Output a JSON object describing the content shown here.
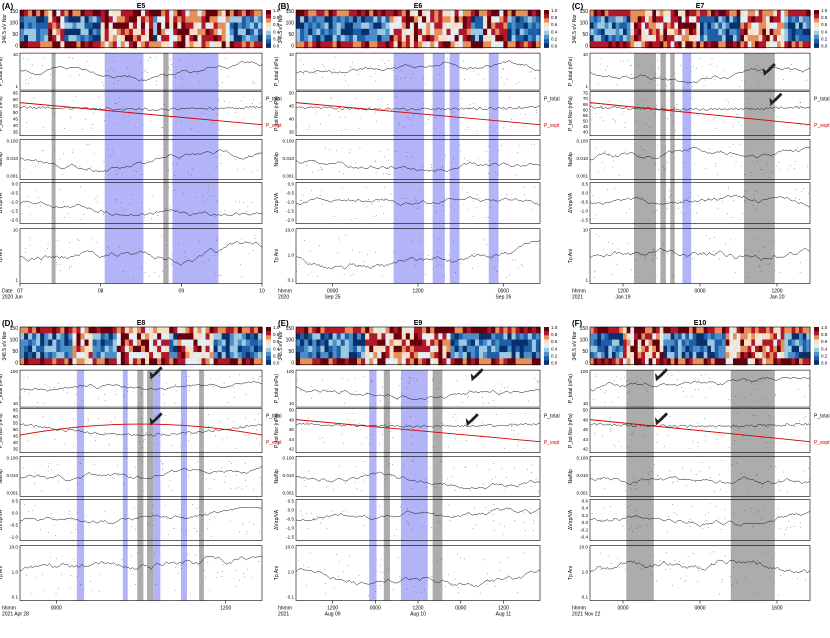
{
  "figure": {
    "row_labels": [
      "β",
      "P_total (nPa)",
      "P_tot Nor (nPa)",
      "Na/Np",
      "ΔVαp/VA",
      "Tp Ani"
    ],
    "spectrogram_label": "346.5 eV Nor",
    "colorbar_ticks": [
      "1.0",
      "0.8",
      "0.6",
      "0.4",
      "0.2",
      "0.0"
    ],
    "legend": {
      "total": "P_total",
      "expt": "P_expt"
    },
    "colors": {
      "blue_band": "#9a9af5",
      "gray_band": "#9d9d9d",
      "expt_line": "#d40000",
      "text_red": "#d40000"
    }
  },
  "chart_data": [
    {
      "type": "multi-panel time series",
      "panel_letter": "(A)",
      "title": "E5",
      "time_axis": {
        "ticks": [
          "07",
          "08",
          "09",
          "10"
        ],
        "label_line1": "Date",
        "label_line2": "2020 Jun"
      },
      "spectrogram_ticks": [
        "150",
        "100",
        "50",
        "0"
      ],
      "y_axes": {
        "beta": [
          "1000.0",
          "100.0",
          "10.0",
          "1.0",
          "0.1"
        ],
        "ptotal": [
          "10",
          "1"
        ],
        "ptot_nor": [
          "65",
          "60",
          "55",
          "50",
          "45",
          "40",
          "35"
        ],
        "na_np": [
          "0.100",
          "0.010",
          "0.001"
        ],
        "dv": [
          "0.0",
          "-0.5",
          "-1.0",
          "-1.5",
          "-2.0"
        ],
        "tp_ani": [
          "10",
          "1"
        ]
      },
      "blue_bands": [
        [
          0.35,
          0.51
        ],
        [
          0.63,
          0.82
        ]
      ],
      "gray_bands": [
        [
          0.131,
          0.147
        ],
        [
          0.592,
          0.614
        ]
      ],
      "arrows": []
    },
    {
      "type": "multi-panel time series",
      "panel_letter": "(B)",
      "title": "E6",
      "time_axis": {
        "ticks": [
          "0000",
          "1200",
          "0000"
        ],
        "label_line1": "hhmm",
        "label_line2": "2020",
        "day_labels": [
          "Sep 25",
          "Sep 26"
        ]
      },
      "spectrogram_ticks": [
        "150",
        "100",
        "50",
        "0"
      ],
      "y_axes": {
        "beta": [
          "100.0",
          "10.0",
          "1.0",
          "0.1"
        ],
        "ptotal": [
          "10"
        ],
        "ptot_nor": [
          "50",
          "45",
          "40",
          "35"
        ],
        "na_np": [
          "0.100",
          "0.010",
          "0.001"
        ],
        "dv": [
          "0.0",
          "-0.5",
          "-1.0",
          "-1.5",
          "-2.0"
        ],
        "tp_ani": [
          "10.0",
          "1.0",
          "0.1"
        ]
      },
      "blue_bands": [
        [
          0.4,
          0.525
        ],
        [
          0.56,
          0.61
        ],
        [
          0.63,
          0.67
        ],
        [
          0.79,
          0.83
        ]
      ],
      "gray_bands": [],
      "arrows": []
    },
    {
      "type": "multi-panel time series",
      "panel_letter": "(C)",
      "title": "E7",
      "time_axis": {
        "ticks": [
          "1200",
          "0000",
          "1200"
        ],
        "label_line1": "hhmm",
        "label_line2": "2021",
        "day_labels": [
          "Jan 19",
          "Jan 20"
        ]
      },
      "spectrogram_ticks": [
        "150",
        "100",
        "50",
        "0"
      ],
      "y_axes": {
        "beta": [
          "1000.0",
          "100.0",
          "10.0",
          "1.0",
          "0.1"
        ],
        "ptotal": [
          "10",
          "1"
        ],
        "ptot_nor": [
          "75",
          "70",
          "65",
          "60",
          "55",
          "50",
          "45",
          "40"
        ],
        "na_np": [
          "0.100",
          "0.010",
          "0.001"
        ],
        "dv": [
          "0.5",
          "0.0",
          "-0.5",
          "-1.0",
          "-1.5"
        ],
        "tp_ani": [
          "10",
          "1"
        ]
      },
      "blue_bands": [
        [
          0.42,
          0.46
        ]
      ],
      "gray_bands": [
        [
          0.2,
          0.3
        ],
        [
          0.32,
          0.345
        ],
        [
          0.365,
          0.385
        ],
        [
          0.7,
          0.84
        ]
      ],
      "arrows": [
        {
          "row": 2,
          "x": 0.79,
          "y": 0.62
        },
        {
          "row": 3,
          "x": 0.82,
          "y": 0.32
        }
      ]
    },
    {
      "type": "multi-panel time series",
      "panel_letter": "(D)",
      "title": "E8",
      "time_axis": {
        "ticks": [
          "0000",
          "1200"
        ],
        "label_line1": "hhmm",
        "label_line2": "2021 Apr 28"
      },
      "spectrogram_ticks": [
        "150",
        "100",
        "50",
        "0"
      ],
      "y_axes": {
        "beta": [
          "100.0",
          "10.0",
          "1.0",
          "0.1"
        ],
        "ptotal": [
          "100",
          "10"
        ],
        "ptot_nor": [
          "65",
          "60",
          "55",
          "50",
          "45",
          "40",
          "35"
        ],
        "na_np": [
          "0.100",
          "0.010",
          "0.001"
        ],
        "dv": [
          "0.5",
          "0.0",
          "-0.5",
          "-1.0"
        ],
        "tp_ani": [
          "10.0",
          "1.0",
          "0.1"
        ]
      },
      "blue_bands": [
        [
          0.235,
          0.265
        ],
        [
          0.425,
          0.445
        ],
        [
          0.55,
          0.58
        ],
        [
          0.665,
          0.69
        ]
      ],
      "gray_bands": [
        [
          0.485,
          0.51
        ],
        [
          0.525,
          0.55
        ],
        [
          0.74,
          0.76
        ]
      ],
      "arrows": [
        {
          "row": 2,
          "x": 0.54,
          "y": 0.25
        },
        {
          "row": 3,
          "x": 0.54,
          "y": 0.38
        }
      ]
    },
    {
      "type": "multi-panel time series",
      "panel_letter": "(E)",
      "title": "E9",
      "time_axis": {
        "ticks": [
          "1200",
          "0000",
          "1200",
          "0000",
          "1200"
        ],
        "label_line1": "hhmm",
        "label_line2": "2021",
        "day_labels": [
          "Aug 09",
          "Aug 10",
          "Aug 11"
        ]
      },
      "spectrogram_ticks": [
        "150",
        "100",
        "50",
        "0"
      ],
      "y_axes": {
        "beta": [
          "1000.000",
          "100.000",
          "10.000",
          "1.000",
          "0.100",
          "0.010"
        ],
        "ptotal": [
          "100",
          "10"
        ],
        "ptot_nor": [
          "50",
          "48",
          "46",
          "44",
          "42"
        ],
        "na_np": [
          "0.100",
          "0.010",
          "0.001"
        ],
        "dv": [
          "0.5",
          "0.0",
          "-0.5",
          "-1.0",
          "-1.5"
        ],
        "tp_ani": [
          "10.0",
          "1.0",
          "0.1"
        ]
      },
      "blue_bands": [
        [
          0.3,
          0.33
        ],
        [
          0.43,
          0.54
        ]
      ],
      "gray_bands": [
        [
          0.36,
          0.385
        ],
        [
          0.56,
          0.6
        ]
      ],
      "arrows": [
        {
          "row": 2,
          "x": 0.72,
          "y": 0.3
        },
        {
          "row": 3,
          "x": 0.7,
          "y": 0.4
        }
      ]
    },
    {
      "type": "multi-panel time series",
      "panel_letter": "(F)",
      "title": "E10",
      "time_axis": {
        "ticks": [
          "0000",
          "0800",
          "1600"
        ],
        "label_line1": "hhmm",
        "label_line2": "2021 Nov 22"
      },
      "spectrogram_ticks": [
        "150",
        "100",
        "50",
        "0"
      ],
      "y_axes": {
        "beta": [
          "100.00",
          "10.00",
          "1.00",
          "0.10",
          "0.01"
        ],
        "ptotal": [
          "100",
          "10"
        ],
        "ptot_nor": [
          "50",
          "48",
          "46",
          "44",
          "42"
        ],
        "na_np": [
          "0.100",
          "0.010",
          "0.001"
        ],
        "dv": [
          "0.6",
          "0.4",
          "0.2",
          "0.0",
          "-0.2",
          "-0.4"
        ],
        "tp_ani": [
          "10.0",
          "1.0",
          "0.1"
        ]
      },
      "blue_bands": [],
      "gray_bands": [
        [
          0.165,
          0.29
        ],
        [
          0.64,
          0.84
        ]
      ],
      "arrows": [
        {
          "row": 2,
          "x": 0.3,
          "y": 0.3
        },
        {
          "row": 3,
          "x": 0.3,
          "y": 0.38
        }
      ]
    }
  ]
}
